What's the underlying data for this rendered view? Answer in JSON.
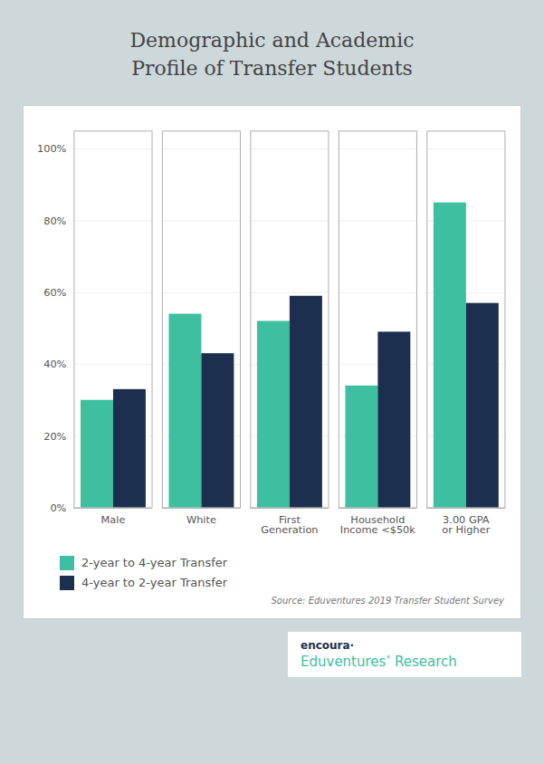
{
  "chart_data": {
    "type": "bar",
    "title": "Demographic and Academic\nProfile of Transfer Students",
    "categories": [
      "Male",
      "White",
      "First\nGeneration",
      "Household\nIncome <$50k",
      "3.00 GPA\nor Higher"
    ],
    "series": [
      {
        "name": "2-year to 4-year Transfer",
        "color": "#3dbfa0",
        "values": [
          0.3,
          0.54,
          0.52,
          0.34,
          0.85
        ]
      },
      {
        "name": "4-year to 2-year Transfer",
        "color": "#1c2f4e",
        "values": [
          0.33,
          0.43,
          0.59,
          0.49,
          0.57
        ]
      }
    ],
    "ylim": [
      0,
      1.05
    ],
    "yticks": [
      {
        "value": 0.0,
        "label": "0%"
      },
      {
        "value": 0.2,
        "label": "20%"
      },
      {
        "value": 0.4,
        "label": "40%"
      },
      {
        "value": 0.6,
        "label": "60%"
      },
      {
        "value": 0.8,
        "label": "80%"
      },
      {
        "value": 1.0,
        "label": "100%"
      }
    ],
    "grid": true,
    "legend": "bottom",
    "annotations": [
      "Source: Eduventures 2019 Transfer Student Survey",
      "encoura·",
      "Eduventures’ Research"
    ]
  }
}
